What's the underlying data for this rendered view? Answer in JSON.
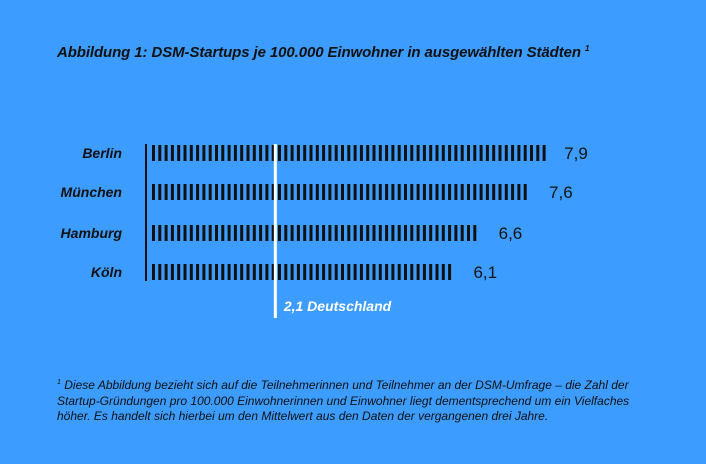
{
  "title": {
    "text": "Abbildung 1: DSM-Startups je 100.000 Einwohner in ausgewählten Städten",
    "marker": "1"
  },
  "chart_data": {
    "type": "bar",
    "categories": [
      "Berlin",
      "München",
      "Hamburg",
      "Köln"
    ],
    "values": [
      7.9,
      7.6,
      6.6,
      6.1
    ],
    "value_labels": [
      "7,9",
      "7,6",
      "6,6",
      "6,1"
    ],
    "reference": {
      "value": 2.1,
      "label": "2,1 Deutschland"
    },
    "colors": {
      "bars": "#111111",
      "reference": "#ffffff",
      "background": "#3d9cff"
    }
  },
  "footnote": {
    "marker": "1",
    "text": "Diese Abbildung bezieht sich auf die Teilnehmerinnen und Teilnehmer an der DSM-Umfrage – die Zahl der Startup-Gründungen pro 100.000 Einwohnerinnen und Einwohner liegt dementsprechend um ein Vielfaches höher. Es handelt sich hierbei um den Mittelwert aus den Daten der vergangenen drei Jahre."
  }
}
